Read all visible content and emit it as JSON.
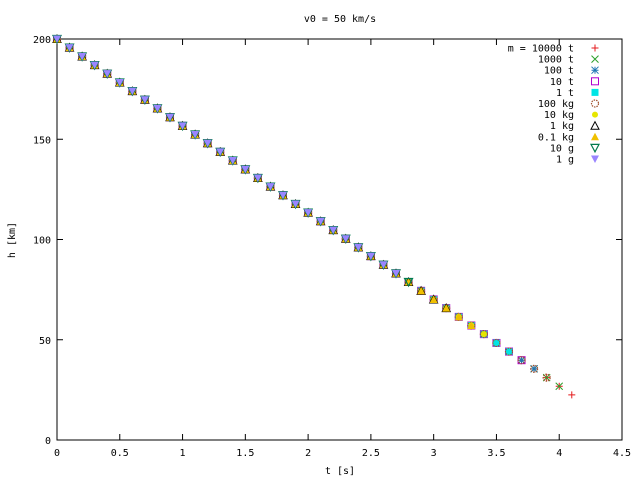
{
  "chart_data": {
    "type": "scatter",
    "title": "v0 = 50 km/s",
    "xlabel": "t [s]",
    "ylabel": "h [km]",
    "xlim": [
      0,
      4.5
    ],
    "ylim": [
      0,
      200
    ],
    "xticks": [
      "0",
      "0.5",
      "1",
      "1.5",
      "2",
      "2.5",
      "3",
      "3.5",
      "4",
      "4.5"
    ],
    "yticks": [
      "0",
      "50",
      "100",
      "150",
      "200"
    ],
    "grid": false,
    "legend_position": "top-right",
    "series": [
      {
        "name": "m = 10000 t",
        "marker": "plus",
        "color": "#e41a1c",
        "t_end": 4.1
      },
      {
        "name": "1000 t",
        "marker": "cross",
        "color": "#2ca02c",
        "t_end": 4.0
      },
      {
        "name": "100 t",
        "marker": "star",
        "color": "#1f77b4",
        "t_end": 3.8
      },
      {
        "name": "10 t",
        "marker": "square-open",
        "color": "#b000d0",
        "t_end": 3.7
      },
      {
        "name": "1 t",
        "marker": "square-filled",
        "color": "#00e5e5",
        "t_end": 3.6
      },
      {
        "name": "100 kg",
        "marker": "circle-open",
        "color": "#a0522d",
        "t_end": 3.9
      },
      {
        "name": "10 kg",
        "marker": "circle-filled",
        "color": "#e6e600",
        "t_end": 3.4
      },
      {
        "name": "1 kg",
        "marker": "triangle-open",
        "color": "#000000",
        "t_end": 3.1
      },
      {
        "name": "0.1 kg",
        "marker": "triangle-filled",
        "color": "#f0c000",
        "t_end": 3.3
      },
      {
        "name": "10 g",
        "marker": "triangle-down-open",
        "color": "#007a4d",
        "t_end": 2.8
      },
      {
        "name": "1 g",
        "marker": "triangle-down-filled",
        "color": "#9a85ff",
        "t_end": 2.7
      }
    ],
    "shared_trajectory": {
      "t": [
        0,
        0.1,
        0.2,
        0.3,
        0.4,
        0.5,
        0.6,
        0.7,
        0.8,
        0.9,
        1.0,
        1.1,
        1.2,
        1.3,
        1.4,
        1.5,
        1.6,
        1.7,
        1.8,
        1.9,
        2.0,
        2.1,
        2.2,
        2.3,
        2.4,
        2.5,
        2.6,
        2.7,
        2.8,
        2.9,
        3.0,
        3.1,
        3.2,
        3.3,
        3.4,
        3.5,
        3.6,
        3.7,
        3.8,
        3.9,
        4.0,
        4.1
      ],
      "h": [
        200,
        195.7,
        191.3,
        187.0,
        182.7,
        178.3,
        174.0,
        169.7,
        165.4,
        161.0,
        156.7,
        152.4,
        148.0,
        143.7,
        139.4,
        135.0,
        130.7,
        126.4,
        122.1,
        117.7,
        113.4,
        109.1,
        104.7,
        100.4,
        96.1,
        91.7,
        87.4,
        83.1,
        78.8,
        74.4,
        70.1,
        65.8,
        61.4,
        57.1,
        52.8,
        48.4,
        44.1,
        39.8,
        35.5,
        31.1,
        26.8,
        22.5
      ]
    }
  }
}
